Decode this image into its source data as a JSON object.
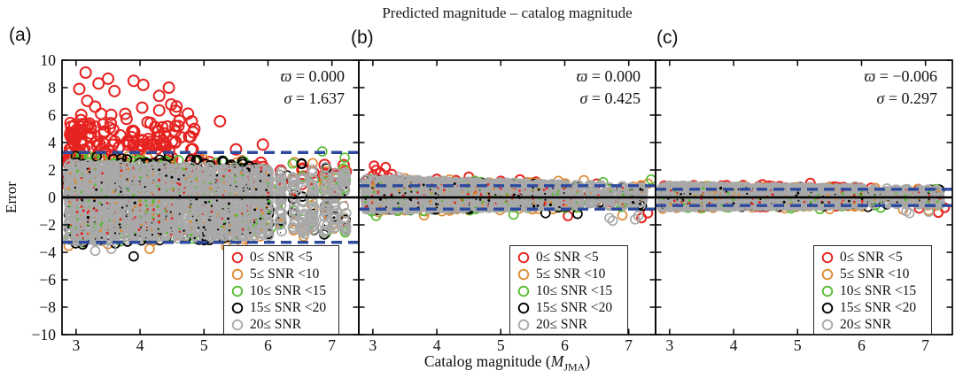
{
  "chart_data": {
    "type": "scatter",
    "title": "Predicted magnitude – catalog magnitude",
    "xlabel_parts": {
      "prefix": "Catalog magnitude (",
      "m": "M",
      "sub": "JMA",
      "suffix": ")"
    },
    "ylabel": "Error",
    "xlim": [
      2.78,
      7.42
    ],
    "ylim": [
      -10,
      10
    ],
    "xticks": [
      3,
      4,
      5,
      6,
      7
    ],
    "yticks": [
      10,
      8,
      6,
      4,
      2,
      0,
      -2,
      -4,
      -6,
      -8,
      -10
    ],
    "grid": false,
    "legend_position": "lower right",
    "colors": {
      "red": "#e62320",
      "orange": "#dd8a33",
      "green": "#58bb33",
      "black": "#000000",
      "gray": "#a9a9a9",
      "dashed_line": "#2e4a9e",
      "zero_line": "#000000"
    },
    "legend": [
      {
        "name": "red",
        "label": "0≤ SNR <5"
      },
      {
        "name": "orange",
        "label": "5≤ SNR <10"
      },
      {
        "name": "green",
        "label": "10≤ SNR <15"
      },
      {
        "name": "black",
        "label": "15≤ SNR <20"
      },
      {
        "name": "gray",
        "label": "20≤ SNR"
      }
    ],
    "panels": [
      {
        "label": "(a)",
        "stats": {
          "varpi_sym": "ϖ",
          "varpi": "0.000",
          "sigma_sym": "σ",
          "sigma": "1.637"
        },
        "zero_line_y": 0,
        "dashed_lines_y": [
          3.274,
          -3.274
        ],
        "gen": {
          "seed": 101,
          "continuous_x": [
            2.88,
            6.05
          ],
          "strip_magnitudes": [
            6.2,
            6.4,
            6.55,
            6.7,
            6.9,
            7.05,
            7.2
          ],
          "strip_fraction": 0.09,
          "x_power": 1.15,
          "series": [
            {
              "name": "red",
              "n": 170,
              "band": [
                0.8,
                3.3
              ],
              "taper": 0.3,
              "x_power": 1.9,
              "extras": [
                [
                  5.25,
                  5.55
                ],
                [
                  5.5,
                  3.5
                ],
                [
                  5.92,
                  3.85
                ],
                [
                  6.2,
                  1.95
                ],
                [
                  6.55,
                  2.1
                ],
                [
                  7.05,
                  1.7
                ],
                [
                  4.75,
                  6.1
                ],
                [
                  4.6,
                  5.2
                ]
              ]
            },
            {
              "name": "orange",
              "n": 260,
              "band": [
                -3.55,
                3.15
              ],
              "taper": 0.22,
              "extras": [
                [
                  5.35,
                  -3.6
                ],
                [
                  5.6,
                  -3.45
                ],
                [
                  4.15,
                  -3.75
                ],
                [
                  6.4,
                  -2.4
                ],
                [
                  6.7,
                  2.5
                ],
                [
                  7.2,
                  -1.6
                ],
                [
                  6.9,
                  1.9
                ]
              ]
            },
            {
              "name": "green",
              "n": 230,
              "band": [
                -3.35,
                3.1
              ],
              "taper": 0.22,
              "extras": [
                [
                  6.85,
                  3.35
                ],
                [
                  7.2,
                  2.9
                ],
                [
                  6.55,
                  -2.3
                ],
                [
                  5.8,
                  -2.5
                ],
                [
                  6.05,
                  -2.2
                ]
              ]
            },
            {
              "name": "black",
              "n": 280,
              "band": [
                -3.5,
                3.05
              ],
              "taper": 0.22,
              "extras": [
                [
                  3.9,
                  -4.3
                ],
                [
                  4.45,
                  3.0
                ],
                [
                  5.1,
                  -2.95
                ],
                [
                  6.3,
                  1.6
                ],
                [
                  6.7,
                  -1.2
                ]
              ]
            },
            {
              "name": "gray",
              "n": 1900,
              "band": [
                -3.25,
                2.45
              ],
              "taper": 0.2,
              "extras": [
                [
                  3.3,
                  -3.9
                ],
                [
                  3.55,
                  -3.75
                ],
                [
                  6.7,
                  -1.9
                ],
                [
                  7.05,
                  -1.5
                ],
                [
                  6.9,
                  2.2
                ]
              ]
            }
          ],
          "red_outlier_cloud": {
            "n": 130,
            "x_start": 2.9,
            "x_span": 1.95,
            "x_power": 1.4,
            "y_base": 3.2,
            "y_scale": 1.4,
            "y_max": 9.25,
            "extras": [
              [
                3.15,
                9.1
              ],
              [
                3.5,
                8.65
              ],
              [
                3.35,
                8.3
              ],
              [
                3.9,
                8.5
              ],
              [
                4.05,
                8.2
              ],
              [
                3.05,
                7.9
              ],
              [
                3.6,
                7.75
              ],
              [
                4.3,
                7.4
              ],
              [
                4.45,
                8.0
              ]
            ]
          },
          "speckle": {
            "n": 420,
            "band": [
              -3.1,
              2.3
            ],
            "taper": 0.2,
            "colors": [
              "black",
              "green",
              "orange",
              "red"
            ]
          }
        }
      },
      {
        "label": "(b)",
        "stats": {
          "varpi_sym": "ϖ",
          "varpi": "0.000",
          "sigma_sym": "σ",
          "sigma": "0.425"
        },
        "zero_line_y": 0,
        "dashed_lines_y": [
          0.85,
          -0.85
        ],
        "gen": {
          "seed": 202,
          "continuous_x": [
            2.88,
            6.05
          ],
          "strip_magnitudes": [
            6.2,
            6.4,
            6.55,
            6.7,
            6.9,
            7.05,
            7.2
          ],
          "strip_fraction": 0.1,
          "x_power": 1.0,
          "series": [
            {
              "name": "red",
              "n": 190,
              "band": [
                -0.75,
                1.25
              ],
              "taper": 0.35,
              "extras": [
                [
                  2.92,
                  1.35
                ],
                [
                  3.0,
                  1.6
                ],
                [
                  3.05,
                  2.0
                ],
                [
                  3.12,
                  1.8
                ],
                [
                  3.2,
                  2.2
                ],
                [
                  3.3,
                  1.7
                ],
                [
                  2.95,
                  1.15
                ],
                [
                  3.1,
                  1.3
                ],
                [
                  3.25,
                  1.45
                ],
                [
                  3.02,
                  2.3
                ],
                [
                  4.0,
                  1.35
                ],
                [
                  4.5,
                  1.5
                ],
                [
                  4.3,
                  1.25
                ],
                [
                  5.0,
                  1.2
                ],
                [
                  5.3,
                  1.3
                ],
                [
                  5.55,
                  1.15
                ],
                [
                  6.05,
                  -1.35
                ],
                [
                  7.2,
                  -1.5
                ],
                [
                  7.3,
                  -1.15
                ],
                [
                  6.5,
                  1.0
                ]
              ]
            },
            {
              "name": "orange",
              "n": 230,
              "band": [
                -1.15,
                1.45
              ],
              "taper": 0.4,
              "extras": [
                [
                  3.5,
                  1.4
                ],
                [
                  4.2,
                  1.3
                ],
                [
                  5.9,
                  1.2
                ],
                [
                  6.3,
                  1.25
                ],
                [
                  7.3,
                  1.0
                ],
                [
                  6.9,
                  -1.3
                ],
                [
                  3.8,
                  -1.3
                ]
              ]
            },
            {
              "name": "green",
              "n": 200,
              "band": [
                -1.1,
                1.35
              ],
              "taper": 0.4,
              "extras": [
                [
                  3.05,
                  -1.35
                ],
                [
                  4.6,
                  1.2
                ],
                [
                  5.2,
                  -1.25
                ],
                [
                  6.6,
                  1.1
                ],
                [
                  7.35,
                  1.3
                ]
              ]
            },
            {
              "name": "black",
              "n": 230,
              "band": [
                -1.0,
                1.3
              ],
              "taper": 0.4,
              "extras": [
                [
                  3.45,
                  1.2
                ],
                [
                  5.7,
                  -1.15
                ],
                [
                  6.2,
                  -1.2
                ]
              ]
            },
            {
              "name": "gray",
              "n": 1550,
              "band": [
                -0.95,
                1.35
              ],
              "taper": 0.42,
              "extras": [
                [
                  6.7,
                  -1.5
                ],
                [
                  6.75,
                  -1.7
                ],
                [
                  7.1,
                  -1.6
                ],
                [
                  7.15,
                  -1.35
                ],
                [
                  3.4,
                  1.5
                ]
              ]
            }
          ],
          "speckle": {
            "n": 260,
            "band": [
              -0.85,
              1.2
            ],
            "taper": 0.4,
            "colors": [
              "black",
              "green",
              "orange",
              "red"
            ]
          }
        }
      },
      {
        "label": "(c)",
        "stats": {
          "varpi_sym": "ϖ",
          "varpi": "−0.006",
          "sigma_sym": "σ",
          "sigma": "0.297"
        },
        "zero_line_y": 0,
        "dashed_lines_y": [
          0.594,
          -0.594
        ],
        "gen": {
          "seed": 303,
          "continuous_x": [
            2.88,
            6.05
          ],
          "strip_magnitudes": [
            6.2,
            6.4,
            6.55,
            6.7,
            6.9,
            7.05,
            7.2
          ],
          "strip_fraction": 0.1,
          "x_power": 1.0,
          "series": [
            {
              "name": "red",
              "n": 200,
              "band": [
                -0.8,
                0.95
              ],
              "taper": 0.3,
              "extras": [
                [
                  4.45,
                  0.95
                ],
                [
                  5.2,
                  1.05
                ],
                [
                  4.15,
                  0.9
                ],
                [
                  3.1,
                  0.8
                ],
                [
                  4.55,
                  0.85
                ],
                [
                  5.5,
                  0.75
                ],
                [
                  6.15,
                  0.7
                ],
                [
                  7.2,
                  -1.1
                ],
                [
                  6.9,
                  -0.8
                ],
                [
                  7.3,
                  -0.75
                ]
              ]
            },
            {
              "name": "orange",
              "n": 210,
              "band": [
                -0.85,
                0.9
              ],
              "taper": 0.3,
              "extras": [
                [
                  6.65,
                  -0.9
                ],
                [
                  5.5,
                  -0.85
                ],
                [
                  3.6,
                  0.75
                ],
                [
                  4.8,
                  -0.8
                ],
                [
                  7.05,
                  -0.95
                ]
              ]
            },
            {
              "name": "green",
              "n": 190,
              "band": [
                -0.8,
                0.85
              ],
              "taper": 0.3,
              "extras": [
                [
                  3.4,
                  0.7
                ],
                [
                  4.9,
                  -0.8
                ],
                [
                  5.35,
                  -0.85
                ],
                [
                  6.3,
                  -0.75
                ],
                [
                  7.15,
                  0.6
                ]
              ]
            },
            {
              "name": "black",
              "n": 210,
              "band": [
                -0.75,
                0.8
              ],
              "taper": 0.3,
              "extras": [
                [
                  3.9,
                  0.7
                ],
                [
                  5.05,
                  0.75
                ],
                [
                  6.1,
                  -0.7
                ]
              ]
            },
            {
              "name": "gray",
              "n": 1500,
              "band": [
                -0.72,
                0.85
              ],
              "taper": 0.3,
              "extras": [
                [
                  6.7,
                  -1.0
                ],
                [
                  6.75,
                  -1.15
                ],
                [
                  7.05,
                  -1.05
                ],
                [
                  3.2,
                  0.85
                ],
                [
                  5.9,
                  0.8
                ]
              ]
            }
          ],
          "speckle": {
            "n": 190,
            "band": [
              -0.65,
              0.75
            ],
            "taper": 0.3,
            "colors": [
              "black",
              "green",
              "orange",
              "red"
            ]
          }
        }
      }
    ]
  }
}
